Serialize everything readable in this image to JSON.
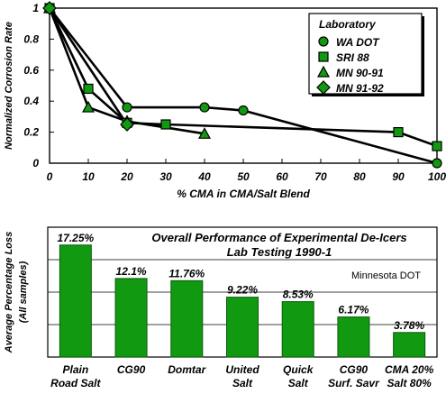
{
  "chart_data": [
    {
      "type": "line",
      "xlabel": "% CMA in CMA/Salt Blend",
      "ylabel": "Normalized Corrosion Rate",
      "xlim": [
        0,
        100
      ],
      "ylim": [
        0,
        1
      ],
      "xticks": [
        "0",
        "10",
        "20",
        "30",
        "40",
        "50",
        "60",
        "70",
        "80",
        "90",
        "100"
      ],
      "yticks": [
        "0",
        "0.2",
        "0.4",
        "0.6",
        "0.8",
        "1"
      ],
      "grid": false,
      "legend": {
        "title": "Laboratory",
        "placement": "top-right",
        "entries": [
          {
            "name": "WA DOT",
            "marker": "circle"
          },
          {
            "name": "SRI 88",
            "marker": "square"
          },
          {
            "name": "MN 90-91",
            "marker": "triangle"
          },
          {
            "name": "MN 91-92",
            "marker": "diamond"
          }
        ]
      },
      "series": [
        {
          "name": "WA DOT",
          "marker": "circle",
          "x": [
            0,
            20,
            40,
            50,
            100
          ],
          "y": [
            1.0,
            0.36,
            0.36,
            0.34,
            0.0
          ]
        },
        {
          "name": "SRI 88",
          "marker": "square",
          "x": [
            0,
            10,
            20,
            30,
            90,
            100
          ],
          "y": [
            1.0,
            0.48,
            0.26,
            0.25,
            0.2,
            0.11
          ]
        },
        {
          "name": "MN 90-91",
          "marker": "triangle",
          "x": [
            0,
            10,
            20,
            40
          ],
          "y": [
            1.0,
            0.36,
            0.27,
            0.19
          ]
        },
        {
          "name": "MN 91-92",
          "marker": "diamond",
          "x": [
            0,
            20
          ],
          "y": [
            1.0,
            0.25
          ]
        }
      ],
      "colors": {
        "marker_fill": "#119911",
        "line": "#000000"
      }
    },
    {
      "type": "bar",
      "title": "Overall Performance of Experimental De-Icers",
      "subtitle": "Lab Testing 1990-1",
      "annotation": "Minnesota DOT",
      "ylabel": "Average Percentage Loss",
      "ylabel2": "(All samples)",
      "categories": [
        [
          "Plain",
          "Road Salt"
        ],
        [
          "CG90"
        ],
        [
          "Domtar"
        ],
        [
          "United",
          "Salt"
        ],
        [
          "Quick",
          "Salt"
        ],
        [
          "CG90",
          "Surf. Savr"
        ],
        [
          "CMA 20%",
          "Salt 80%"
        ]
      ],
      "values": [
        17.25,
        12.1,
        11.76,
        9.22,
        8.53,
        6.17,
        3.78
      ],
      "data_labels": [
        "17.25%",
        "12.1%",
        "11.76%",
        "9.22%",
        "8.53%",
        "6.17%",
        "3.78%"
      ],
      "ylim": [
        0,
        20
      ],
      "grid": true,
      "colors": {
        "bar": "#119911",
        "bar_edge": "#0a5a0a"
      }
    }
  ]
}
